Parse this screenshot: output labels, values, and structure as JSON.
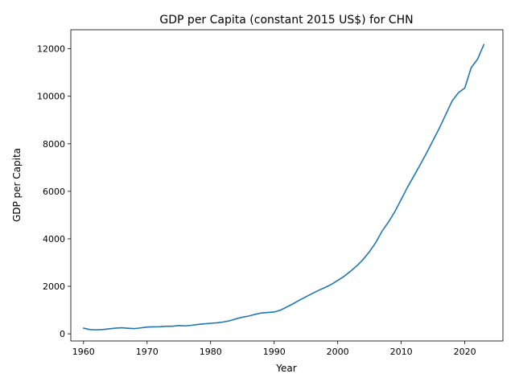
{
  "chart_data": {
    "type": "line",
    "title": "GDP per Capita (constant 2015 US$) for CHN",
    "xlabel": "Year",
    "ylabel": "GDP per Capita",
    "xlim": [
      1958,
      2026
    ],
    "ylim": [
      -300,
      12800
    ],
    "xticks": [
      1960,
      1970,
      1980,
      1990,
      2000,
      2010,
      2020
    ],
    "yticks": [
      0,
      2000,
      4000,
      6000,
      8000,
      10000,
      12000
    ],
    "grid": false,
    "legend": "none",
    "line_color": "#1f77b4",
    "series": [
      {
        "x": [
          1960,
          1961,
          1962,
          1963,
          1964,
          1965,
          1966,
          1967,
          1968,
          1969,
          1970,
          1971,
          1972,
          1973,
          1974,
          1975,
          1976,
          1977,
          1978,
          1979,
          1980,
          1981,
          1982,
          1983,
          1984,
          1985,
          1986,
          1987,
          1988,
          1989,
          1990,
          1991,
          1992,
          1993,
          1994,
          1995,
          1996,
          1997,
          1998,
          1999,
          2000,
          2001,
          2002,
          2003,
          2004,
          2005,
          2006,
          2007,
          2008,
          2009,
          2010,
          2011,
          2012,
          2013,
          2014,
          2015,
          2016,
          2017,
          2018,
          2019,
          2020,
          2021,
          2022,
          2023
        ],
        "values": [
          240,
          180,
          170,
          180,
          210,
          240,
          255,
          235,
          220,
          250,
          285,
          295,
          300,
          320,
          320,
          350,
          335,
          360,
          395,
          420,
          445,
          465,
          500,
          550,
          630,
          700,
          750,
          820,
          880,
          900,
          920,
          1000,
          1130,
          1270,
          1420,
          1560,
          1700,
          1830,
          1950,
          2080,
          2250,
          2420,
          2630,
          2860,
          3130,
          3460,
          3850,
          4330,
          4710,
          5150,
          5660,
          6180,
          6650,
          7130,
          7620,
          8140,
          8660,
          9230,
          9800,
          10150,
          10350,
          11200,
          11560,
          12180
        ]
      }
    ]
  }
}
